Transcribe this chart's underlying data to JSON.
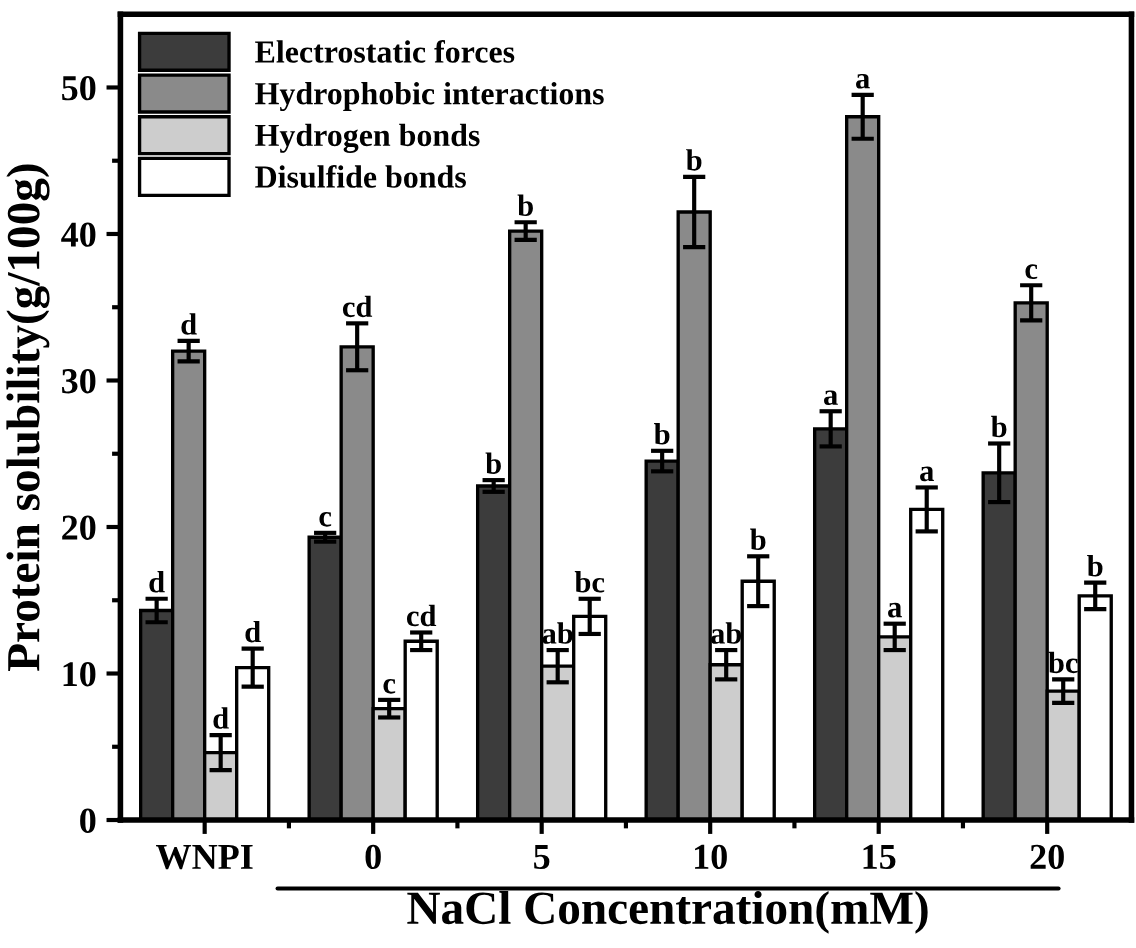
{
  "chart_data": {
    "type": "bar",
    "ylabel": "Protein solubility(g/100g)",
    "xlabel": "NaCl Concentration(mM)",
    "categories": [
      "WNPI",
      "0",
      "5",
      "10",
      "15",
      "20"
    ],
    "ylim": [
      0,
      55
    ],
    "yticks": [
      0,
      10,
      20,
      30,
      40,
      50
    ],
    "legend": "top left",
    "grid": false,
    "series": [
      {
        "name": "Electrostatic forces",
        "color": "#3c3c3c",
        "values": [
          14.3,
          19.3,
          22.8,
          24.5,
          26.7,
          23.7
        ],
        "errors": [
          0.8,
          0.3,
          0.4,
          0.7,
          1.2,
          2.0
        ]
      },
      {
        "name": "Hydrophobic interactions",
        "color": "#8a8a8a",
        "values": [
          32.0,
          32.3,
          40.2,
          41.5,
          48.0,
          35.3
        ],
        "errors": [
          0.7,
          1.6,
          0.6,
          2.4,
          1.5,
          1.2
        ]
      },
      {
        "name": "Hydrogen bonds",
        "color": "#cdcdcd",
        "values": [
          4.6,
          7.6,
          10.5,
          10.6,
          12.5,
          8.8
        ],
        "errors": [
          1.2,
          0.6,
          1.1,
          1.0,
          0.9,
          0.8
        ]
      },
      {
        "name": "Disulfide bonds",
        "color": "#ffffff",
        "values": [
          10.4,
          12.2,
          13.9,
          16.3,
          21.2,
          15.3
        ],
        "errors": [
          1.3,
          0.6,
          1.2,
          1.7,
          1.5,
          0.9
        ]
      }
    ],
    "annotations": [
      {
        "text": "d",
        "x": "WNPI",
        "y": 15.1
      },
      {
        "text": "d",
        "x": "WNPI",
        "y": 32.7
      },
      {
        "text": "d",
        "x": "WNPI",
        "y": 5.8
      },
      {
        "text": "d",
        "x": "WNPI",
        "y": 11.7
      },
      {
        "text": "c",
        "x": "0",
        "y": 19.6
      },
      {
        "text": "cd",
        "x": "0",
        "y": 33.9
      },
      {
        "text": "c",
        "x": "0",
        "y": 8.2
      },
      {
        "text": "cd",
        "x": "0",
        "y": 12.8
      },
      {
        "text": "b",
        "x": "5",
        "y": 23.2
      },
      {
        "text": "b",
        "x": "5",
        "y": 40.8
      },
      {
        "text": "ab",
        "x": "5",
        "y": 11.6
      },
      {
        "text": "bc",
        "x": "5",
        "y": 15.1
      },
      {
        "text": "b",
        "x": "10",
        "y": 25.2
      },
      {
        "text": "b",
        "x": "10",
        "y": 43.9
      },
      {
        "text": "ab",
        "x": "10",
        "y": 11.6
      },
      {
        "text": "b",
        "x": "10",
        "y": 18.0
      },
      {
        "text": "a",
        "x": "15",
        "y": 27.9
      },
      {
        "text": "a",
        "x": "15",
        "y": 49.5
      },
      {
        "text": "a",
        "x": "15",
        "y": 13.4
      },
      {
        "text": "a",
        "x": "15",
        "y": 22.7
      },
      {
        "text": "b",
        "x": "20",
        "y": 25.7
      },
      {
        "text": "c",
        "x": "20",
        "y": 36.5
      },
      {
        "text": "bc",
        "x": "20",
        "y": 9.6
      },
      {
        "text": "b",
        "x": "20",
        "y": 16.2
      }
    ]
  }
}
